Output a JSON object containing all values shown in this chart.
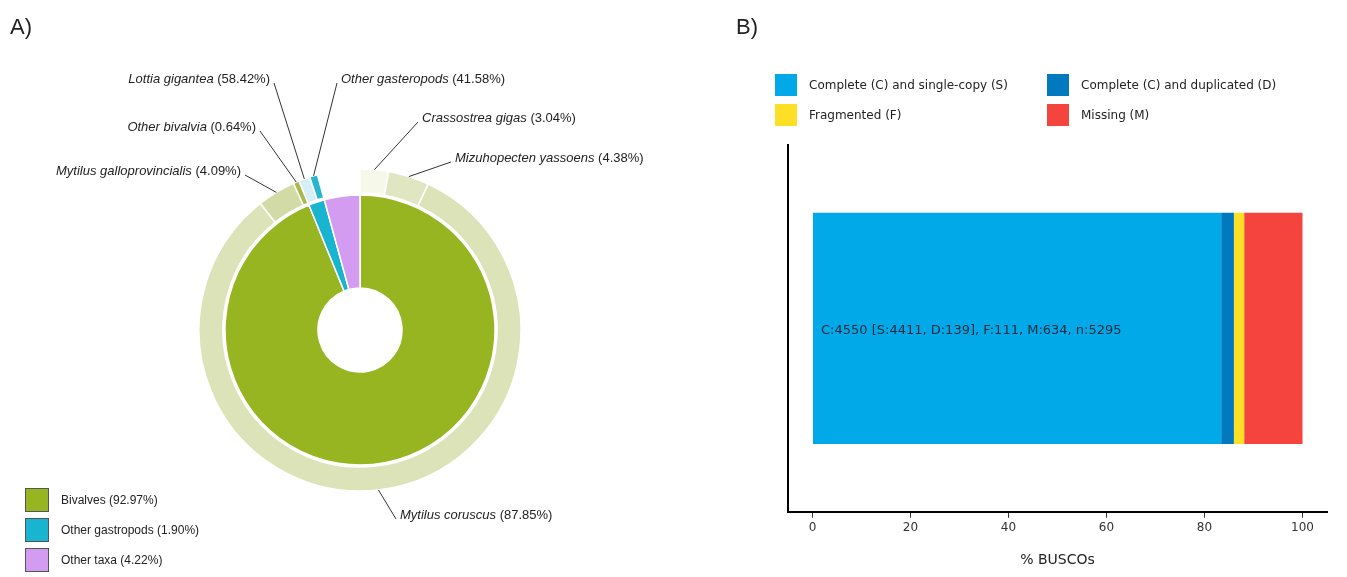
{
  "chart_data": [
    {
      "type": "donut",
      "title": "A)",
      "categories": [
        "Bivalves",
        "Other gastropods",
        "Other taxa"
      ],
      "values": [
        92.97,
        1.9,
        4.22
      ],
      "value_labels": [
        "(92.97%)",
        "(1.90%)",
        "(4.22%)"
      ],
      "colors": [
        "#97b520",
        "#19b4d0",
        "#d49cf0"
      ],
      "legend": "bottom left"
    },
    {
      "type": "donut",
      "categories": [
        "Crassostrea gigas",
        "Mizuhopecten yassoens",
        "Mytilus coruscus",
        "Mytilus galloprovincialis",
        "Other bivalvia"
      ],
      "values": [
        3.04,
        4.38,
        87.85,
        4.09,
        0.64
      ],
      "value_labels": [
        "(3.04%)",
        "(4.38%)",
        "(87.85%)",
        "(4.09%)",
        "(0.64%)"
      ],
      "colors": [
        "#f6f8ea",
        "#e1e6c2",
        "#dde3b8",
        "#d2dba6",
        "#a9b94c"
      ]
    },
    {
      "type": "donut",
      "categories": [
        "Lottia gigantea",
        "Other gasteropods"
      ],
      "values": [
        58.42,
        41.58
      ],
      "value_labels": [
        "(58.42%)",
        "(41.58%)"
      ],
      "colors": [
        "#d6eef5",
        "#27b5d0"
      ]
    },
    {
      "type": "bar",
      "title": "B)",
      "orientation": "horizontal",
      "stacked": true,
      "categories": [
        null
      ],
      "series": [
        {
          "name": "Complete (C) and single-copy (S)",
          "color": "#01a9e9",
          "values": [
            83.4
          ]
        },
        {
          "name": "Complete (C) and duplicated (D)",
          "color": "#0079bf",
          "values": [
            2.6
          ]
        },
        {
          "name": "Fragmented (F)",
          "color": "#fde026",
          "values": [
            2.1
          ]
        },
        {
          "name": "Missing (M)",
          "color": "#f5443d",
          "values": [
            11.9
          ]
        }
      ],
      "xlim": [
        -5,
        105
      ],
      "xticks": [
        0,
        20,
        40,
        60,
        80,
        100
      ],
      "xlabel": "% BUSCOs",
      "tick_labels": "x",
      "legend": "top",
      "annotations": [
        "C:4550 [S:4411, D:139], F:111, M:634, n:5295"
      ]
    }
  ]
}
